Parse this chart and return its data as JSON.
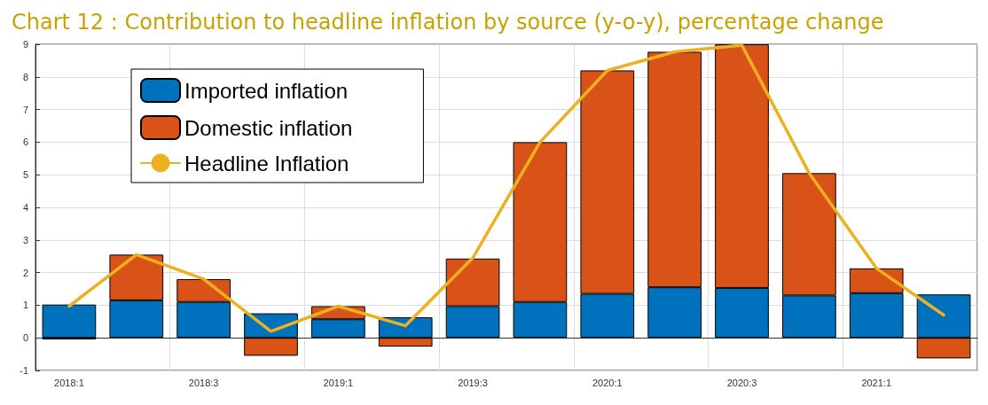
{
  "chart_data": {
    "type": "bar",
    "stacked": true,
    "title": "Chart 12 : Contribution to headline inflation by source (y-o-y), percentage change",
    "categories": [
      "2018:1",
      null,
      "2018:3",
      null,
      "2019:1",
      null,
      "2019:3",
      null,
      "2020:1",
      null,
      "2020:3",
      null,
      "2021:1",
      null
    ],
    "series": [
      {
        "name": "Imported inflation",
        "color": "#0072bd",
        "values": [
          1.02,
          1.15,
          1.1,
          0.75,
          0.57,
          0.63,
          0.97,
          1.1,
          1.35,
          1.55,
          1.53,
          1.3,
          1.37,
          1.33
        ]
      },
      {
        "name": "Domestic inflation",
        "color": "#d95319",
        "values": [
          -0.05,
          1.4,
          0.7,
          -0.55,
          0.4,
          -0.27,
          1.46,
          4.9,
          6.85,
          7.22,
          7.47,
          3.75,
          0.76,
          -0.63
        ]
      },
      {
        "name": "Headline Inflation",
        "type": "line",
        "color": "#edb120",
        "values": [
          0.97,
          2.55,
          1.8,
          0.2,
          0.97,
          0.37,
          2.45,
          6.0,
          8.2,
          8.77,
          8.97,
          5.05,
          2.13,
          0.7
        ]
      }
    ],
    "ylim": [
      -1,
      9
    ],
    "yticks": [
      -1,
      0,
      1,
      2,
      3,
      4,
      5,
      6,
      7,
      8,
      9
    ],
    "grid": true,
    "legend": "top left",
    "marker": "none",
    "line_style": "solid"
  }
}
